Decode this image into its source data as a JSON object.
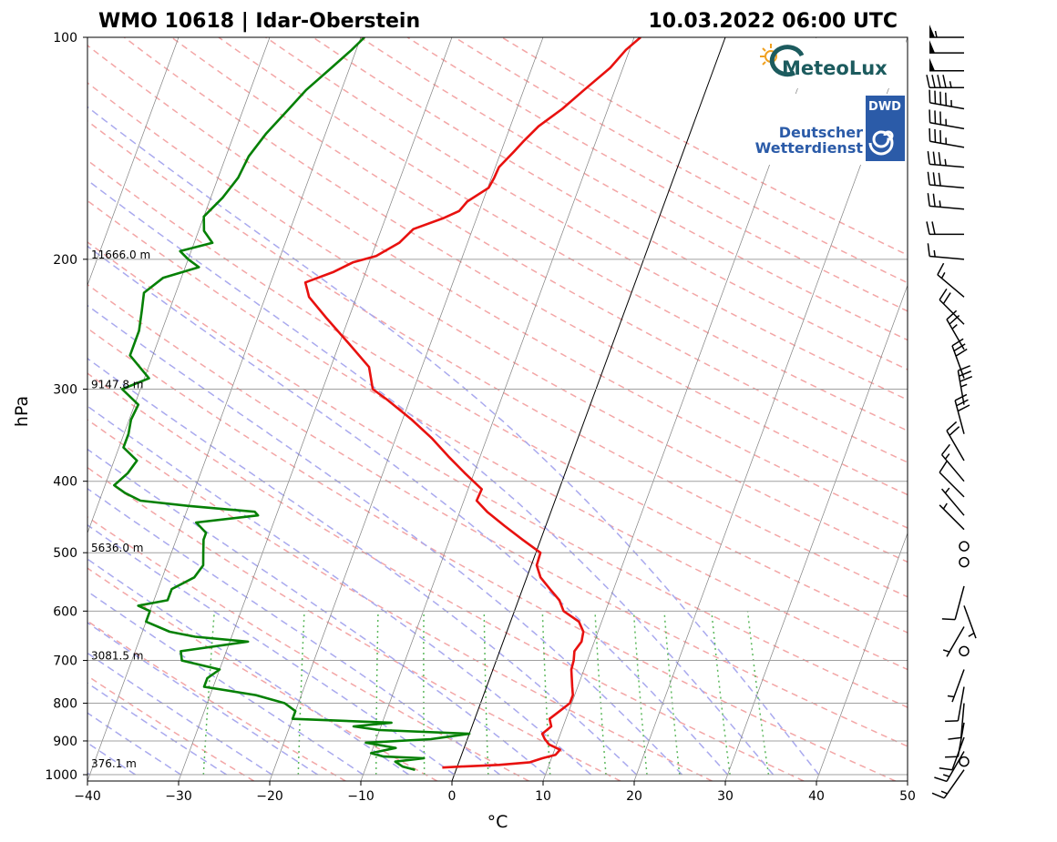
{
  "header": {
    "station": "WMO 10618 | Idar-Oberstein",
    "datetime": "10.03.2022 06:00 UTC"
  },
  "logos": {
    "meteolux": "MeteoLux",
    "dwd_badge": "DWD",
    "dwd_line1": "Deutscher",
    "dwd_line2": "Wetterdienst"
  },
  "colors": {
    "temperature": "#e8110f",
    "dewpoint": "#058005",
    "dry_adiabat": "#f3a6a6",
    "moist_adiabat": "#a9a9ee",
    "mixing_ratio": "#5cb85c",
    "isotherm": "#808080",
    "isobar": "#a0a0a0"
  },
  "chart_data": {
    "type": "line",
    "title": "WMO 10618 | Idar-Oberstein",
    "xlabel": "°C",
    "ylabel": "hPa",
    "xlim": [
      -40,
      50
    ],
    "ylim": [
      1020,
      100
    ],
    "y_scale": "log",
    "skew": true,
    "x_ticks": [
      -40,
      -30,
      -20,
      -10,
      0,
      10,
      20,
      30,
      40,
      50
    ],
    "x_tick_labels": [
      "−40",
      "−30",
      "−20",
      "−10",
      "0",
      "10",
      "20",
      "30",
      "40",
      "50"
    ],
    "y_ticks": [
      1000,
      900,
      800,
      700,
      600,
      500,
      400,
      300,
      200,
      100
    ],
    "y_tick_labels": [
      "1000",
      "900",
      "800",
      "700",
      "600",
      "500",
      "400",
      "300",
      "200",
      "100"
    ],
    "grid": true,
    "height_labels": [
      {
        "p": 200,
        "text": "11666.0 m"
      },
      {
        "p": 300,
        "text": "9147.8 m"
      },
      {
        "p": 500,
        "text": "5636.0 m"
      },
      {
        "p": 700,
        "text": "3081.5 m"
      },
      {
        "p": 980,
        "text": "376.1 m"
      }
    ],
    "series": [
      {
        "key": "temperature",
        "points": [
          [
            978,
            -1.6
          ],
          [
            975,
            0.5
          ],
          [
            970,
            4.5
          ],
          [
            962,
            7.8
          ],
          [
            950,
            9.0
          ],
          [
            940,
            10.3
          ],
          [
            925,
            10.6
          ],
          [
            910,
            9.2
          ],
          [
            895,
            8.5
          ],
          [
            880,
            8.0
          ],
          [
            860,
            8.7
          ],
          [
            840,
            8.2
          ],
          [
            820,
            9.0
          ],
          [
            800,
            9.8
          ],
          [
            780,
            9.8
          ],
          [
            760,
            9.4
          ],
          [
            740,
            9.0
          ],
          [
            720,
            8.6
          ],
          [
            700,
            8.5
          ],
          [
            680,
            8.2
          ],
          [
            660,
            8.6
          ],
          [
            640,
            8.4
          ],
          [
            620,
            7.5
          ],
          [
            600,
            5.4
          ],
          [
            580,
            4.5
          ],
          [
            560,
            3.0
          ],
          [
            540,
            1.5
          ],
          [
            520,
            0.6
          ],
          [
            500,
            0.5
          ],
          [
            480,
            -2.0
          ],
          [
            460,
            -4.5
          ],
          [
            440,
            -7.0
          ],
          [
            425,
            -8.6
          ],
          [
            410,
            -8.5
          ],
          [
            390,
            -11.0
          ],
          [
            370,
            -13.5
          ],
          [
            350,
            -16.0
          ],
          [
            330,
            -19.0
          ],
          [
            310,
            -22.5
          ],
          [
            300,
            -24.5
          ],
          [
            280,
            -25.8
          ],
          [
            260,
            -29.0
          ],
          [
            240,
            -32.5
          ],
          [
            225,
            -35.2
          ],
          [
            215,
            -36.2
          ],
          [
            208,
            -33.5
          ],
          [
            202,
            -31.8
          ],
          [
            198,
            -29.5
          ],
          [
            190,
            -27.5
          ],
          [
            182,
            -26.5
          ],
          [
            176,
            -23.7
          ],
          [
            172,
            -22.2
          ],
          [
            167,
            -21.7
          ],
          [
            160,
            -19.9
          ],
          [
            155,
            -19.7
          ],
          [
            150,
            -19.6
          ],
          [
            143,
            -18.6
          ],
          [
            138,
            -17.9
          ],
          [
            132,
            -16.9
          ],
          [
            125,
            -15.0
          ],
          [
            118,
            -13.4
          ],
          [
            110,
            -11.4
          ],
          [
            104,
            -10.4
          ],
          [
            100,
            -9.3
          ]
        ]
      },
      {
        "key": "dewpoint",
        "points": [
          [
            985,
            -4.5
          ],
          [
            975,
            -6.0
          ],
          [
            960,
            -7.0
          ],
          [
            950,
            -4.0
          ],
          [
            945,
            -8.5
          ],
          [
            935,
            -10.0
          ],
          [
            920,
            -7.5
          ],
          [
            905,
            -11.0
          ],
          [
            895,
            -4.0
          ],
          [
            880,
            0.0
          ],
          [
            870,
            -10.0
          ],
          [
            860,
            -13.0
          ],
          [
            850,
            -9.0
          ],
          [
            840,
            -20.0
          ],
          [
            820,
            -20.0
          ],
          [
            800,
            -21.5
          ],
          [
            780,
            -25.0
          ],
          [
            760,
            -31.0
          ],
          [
            740,
            -31.0
          ],
          [
            720,
            -30.0
          ],
          [
            700,
            -34.5
          ],
          [
            680,
            -35.0
          ],
          [
            660,
            -28.0
          ],
          [
            650,
            -34.0
          ],
          [
            640,
            -37.0
          ],
          [
            620,
            -40.0
          ],
          [
            600,
            -40.0
          ],
          [
            590,
            -41.5
          ],
          [
            580,
            -38.5
          ],
          [
            560,
            -38.5
          ],
          [
            540,
            -36.5
          ],
          [
            520,
            -36.0
          ],
          [
            500,
            -36.5
          ],
          [
            480,
            -37.0
          ],
          [
            470,
            -37.0
          ],
          [
            455,
            -38.5
          ],
          [
            445,
            -32.0
          ],
          [
            440,
            -32.5
          ],
          [
            432,
            -40.0
          ],
          [
            425,
            -45.5
          ],
          [
            415,
            -47.5
          ],
          [
            405,
            -49.0
          ],
          [
            390,
            -48.0
          ],
          [
            375,
            -47.5
          ],
          [
            360,
            -49.5
          ],
          [
            345,
            -49.5
          ],
          [
            330,
            -49.8
          ],
          [
            315,
            -49.6
          ],
          [
            300,
            -52.0
          ],
          [
            290,
            -49.5
          ],
          [
            270,
            -52.5
          ],
          [
            250,
            -52.5
          ],
          [
            235,
            -53.0
          ],
          [
            222,
            -53.5
          ],
          [
            212,
            -52.0
          ],
          [
            205,
            -48.5
          ],
          [
            200,
            -50.0
          ],
          [
            195,
            -51.2
          ],
          [
            190,
            -48.0
          ],
          [
            183,
            -49.4
          ],
          [
            175,
            -50.0
          ],
          [
            165,
            -48.7
          ],
          [
            155,
            -47.8
          ],
          [
            145,
            -47.5
          ],
          [
            135,
            -46.5
          ],
          [
            125,
            -45.0
          ],
          [
            118,
            -43.9
          ],
          [
            110,
            -42.0
          ],
          [
            104,
            -40.5
          ],
          [
            100,
            -39.6
          ]
        ]
      }
    ],
    "wind_barbs": [
      {
        "p": 100,
        "dir": 270,
        "kt": 55
      },
      {
        "p": 105,
        "dir": 270,
        "kt": 50
      },
      {
        "p": 111,
        "dir": 270,
        "kt": 50
      },
      {
        "p": 117,
        "dir": 270,
        "kt": 45
      },
      {
        "p": 125,
        "dir": 280,
        "kt": 45
      },
      {
        "p": 133,
        "dir": 280,
        "kt": 35
      },
      {
        "p": 141,
        "dir": 280,
        "kt": 35
      },
      {
        "p": 150,
        "dir": 275,
        "kt": 35
      },
      {
        "p": 160,
        "dir": 275,
        "kt": 30
      },
      {
        "p": 171,
        "dir": 275,
        "kt": 25
      },
      {
        "p": 185,
        "dir": 270,
        "kt": 20
      },
      {
        "p": 200,
        "dir": 275,
        "kt": 15
      },
      {
        "p": 225,
        "dir": 310,
        "kt": 15
      },
      {
        "p": 245,
        "dir": 315,
        "kt": 20
      },
      {
        "p": 265,
        "dir": 330,
        "kt": 25
      },
      {
        "p": 290,
        "dir": 340,
        "kt": 30
      },
      {
        "p": 315,
        "dir": 350,
        "kt": 35
      },
      {
        "p": 345,
        "dir": 345,
        "kt": 30
      },
      {
        "p": 375,
        "dir": 330,
        "kt": 20
      },
      {
        "p": 400,
        "dir": 320,
        "kt": 15
      },
      {
        "p": 420,
        "dir": 315,
        "kt": 10
      },
      {
        "p": 445,
        "dir": 320,
        "kt": 5
      },
      {
        "p": 465,
        "dir": 315,
        "kt": 5
      },
      {
        "p": 490,
        "dir": 0,
        "kt": 0
      },
      {
        "p": 515,
        "dir": 0,
        "kt": 0
      },
      {
        "p": 555,
        "dir": 195,
        "kt": 10
      },
      {
        "p": 590,
        "dir": 160,
        "kt": 5
      },
      {
        "p": 630,
        "dir": 210,
        "kt": 5
      },
      {
        "p": 680,
        "dir": 0,
        "kt": 0
      },
      {
        "p": 720,
        "dir": 200,
        "kt": 5
      },
      {
        "p": 760,
        "dir": 190,
        "kt": 10
      },
      {
        "p": 800,
        "dir": 185,
        "kt": 10
      },
      {
        "p": 850,
        "dir": 190,
        "kt": 10
      },
      {
        "p": 890,
        "dir": 200,
        "kt": 10
      },
      {
        "p": 930,
        "dir": 210,
        "kt": 15
      },
      {
        "p": 960,
        "dir": 0,
        "kt": 0
      },
      {
        "p": 985,
        "dir": 215,
        "kt": 15
      }
    ]
  }
}
